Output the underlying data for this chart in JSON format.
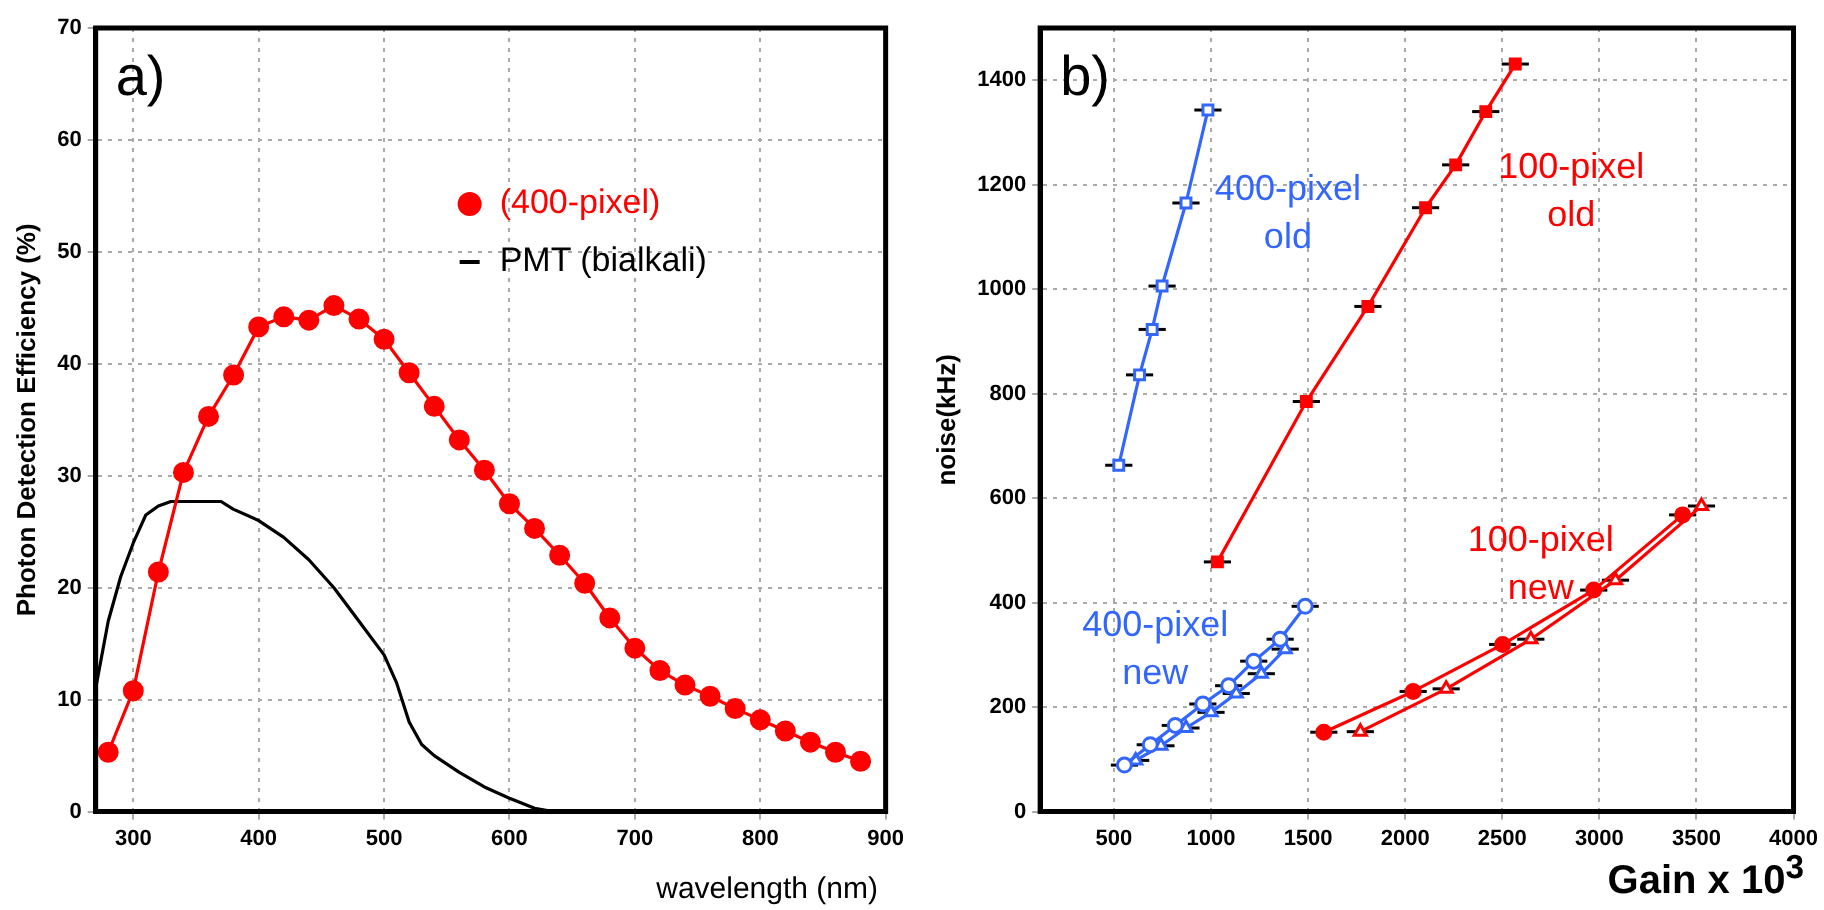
{
  "chart_data": [
    {
      "type": "line",
      "annotations": [
        "a)"
      ],
      "xlabel": "wavelength (nm)",
      "ylabel": "Photon Detection Efficiency (%)",
      "xlim": [
        270,
        900
      ],
      "ylim": [
        0,
        70
      ],
      "xticks": [
        300,
        400,
        500,
        600,
        700,
        800,
        900
      ],
      "yticks": [
        0,
        10,
        20,
        30,
        40,
        50,
        60,
        70
      ],
      "grid": true,
      "legend": "top right",
      "series": [
        {
          "name": "(400-pixel)",
          "color": "#ff0000",
          "marker": "circle",
          "x": [
            280,
            300,
            320,
            340,
            360,
            380,
            400,
            420,
            440,
            460,
            480,
            500,
            520,
            540,
            560,
            580,
            600,
            620,
            640,
            660,
            680,
            700,
            720,
            740,
            760,
            780,
            800,
            820,
            840,
            860,
            880
          ],
          "values": [
            5.3,
            10.8,
            21.4,
            30.3,
            35.3,
            39,
            43.3,
            44.2,
            43.9,
            45.2,
            44,
            42.2,
            39.2,
            36.2,
            33.2,
            30.5,
            27.5,
            25.3,
            22.9,
            20.4,
            17.3,
            14.6,
            12.6,
            11.3,
            10.3,
            9.2,
            8.2,
            7.2,
            6.2,
            5.3,
            4.5
          ]
        },
        {
          "name": "PMT (bialkali)",
          "color": "#000000",
          "marker": "none",
          "x": [
            270,
            280,
            290,
            300,
            310,
            320,
            330,
            340,
            360,
            370,
            380,
            400,
            420,
            440,
            460,
            480,
            500,
            510,
            520,
            530,
            540,
            560,
            580,
            600,
            620,
            635
          ],
          "values": [
            11,
            17,
            21,
            24,
            26.5,
            27.3,
            27.7,
            27.7,
            27.7,
            27.7,
            27,
            26,
            24.5,
            22.5,
            20,
            17,
            14,
            11.5,
            8,
            6,
            5,
            3.5,
            2.2,
            1.2,
            0.3,
            0
          ]
        }
      ]
    },
    {
      "type": "line",
      "annotations": [
        "b)"
      ],
      "xlabel": "Gain x 10$^{3}$",
      "ylabel": "noise(kHz)",
      "xlim": [
        120,
        4000
      ],
      "ylim": [
        0,
        1500
      ],
      "xticks": [
        500,
        1000,
        1500,
        2000,
        2500,
        3000,
        3500,
        4000
      ],
      "yticks": [
        0,
        200,
        400,
        600,
        800,
        1000,
        1200,
        1400
      ],
      "grid": true,
      "legend": false,
      "series": [
        {
          "name": "400-pixel old",
          "color": "#3366ff",
          "marker": "square",
          "x": [
            525,
            632,
            697,
            748,
            871,
            984
          ],
          "values": [
            663,
            836,
            923,
            1006,
            1165,
            1343
          ],
          "xerrors": [
            70,
            70,
            70,
            70,
            70,
            70
          ]
        },
        {
          "name": "100-pixel old",
          "color": "#ff0000",
          "marker": "square",
          "x": [
            1033,
            1491,
            1808,
            2105,
            2260,
            2415,
            2567
          ],
          "values": [
            478,
            785,
            967,
            1156,
            1238,
            1340,
            1431
          ],
          "xerrors": [
            70,
            70,
            70,
            70,
            70,
            70,
            70
          ]
        },
        {
          "name": "400-pixel new",
          "color": "#3366ff",
          "marker": "circle",
          "x": [
            554,
            687,
            816,
            958,
            1091,
            1220,
            1356,
            1485
          ],
          "values": [
            89,
            128,
            165,
            206,
            241,
            288,
            330,
            393
          ],
          "xerrors": [
            70,
            70,
            70,
            70,
            70,
            70,
            70,
            70
          ]
        },
        {
          "color": "#3366ff",
          "marker": "triangle",
          "x": [
            612,
            742,
            871,
            1000,
            1130,
            1259,
            1382
          ],
          "values": [
            98,
            126,
            160,
            190,
            226,
            264,
            311
          ],
          "xerrors": [
            70,
            70,
            70,
            70,
            70,
            70,
            70
          ]
        },
        {
          "name": "100-pixel new",
          "color": "#ff0000",
          "marker": "circle",
          "x": [
            1581,
            2041,
            2502,
            2971,
            3429
          ],
          "values": [
            152,
            230,
            320,
            424,
            568
          ],
          "xerrors": [
            70,
            70,
            70,
            70,
            70
          ]
        },
        {
          "color": "#ff0000",
          "marker": "triangle",
          "x": [
            1769,
            2211,
            2647,
            3083,
            3526
          ],
          "values": [
            153,
            235,
            330,
            443,
            585
          ],
          "xerrors": [
            70,
            70,
            70,
            70,
            70
          ]
        }
      ]
    }
  ]
}
